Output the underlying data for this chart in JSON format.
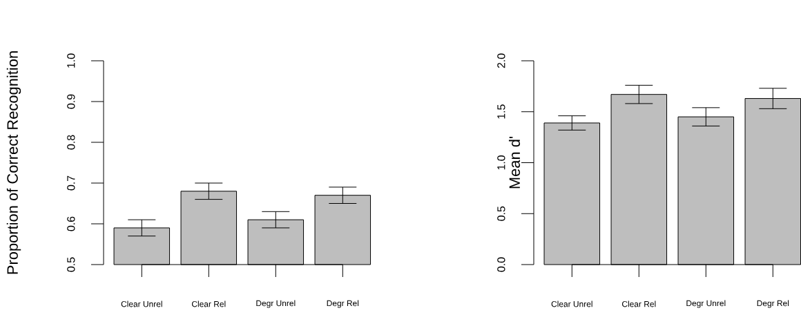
{
  "chart_data": [
    {
      "type": "bar",
      "ylabel": "Proportion of Correct Recognition",
      "categories": [
        "Clear Unrel",
        "Clear Rel",
        "Degr Unrel",
        "Degr Rel"
      ],
      "values": [
        0.59,
        0.68,
        0.61,
        0.67
      ],
      "errors": [
        0.02,
        0.02,
        0.02,
        0.02
      ],
      "color": "#bebebe",
      "ylim": [
        0.5,
        1.0
      ],
      "yticks": [
        0.5,
        0.6,
        0.7,
        0.8,
        0.9,
        {
          "value": 1.0,
          "label": "1.0"
        }
      ]
    },
    {
      "type": "bar",
      "ylabel": "Mean d'",
      "categories": [
        "Clear Unrel",
        "Clear Rel",
        "Degr Unrel",
        "Degr Rel"
      ],
      "values": [
        1.39,
        1.67,
        1.45,
        1.63
      ],
      "errors": [
        0.07,
        0.09,
        0.09,
        0.1
      ],
      "color": "#bebebe",
      "ylim": [
        0,
        2
      ],
      "yticks": [
        {
          "value": 0,
          "label": "0.0"
        },
        0.5,
        {
          "value": 1,
          "label": "1.0"
        },
        1.5,
        {
          "value": 2,
          "label": "2.0"
        }
      ]
    }
  ]
}
